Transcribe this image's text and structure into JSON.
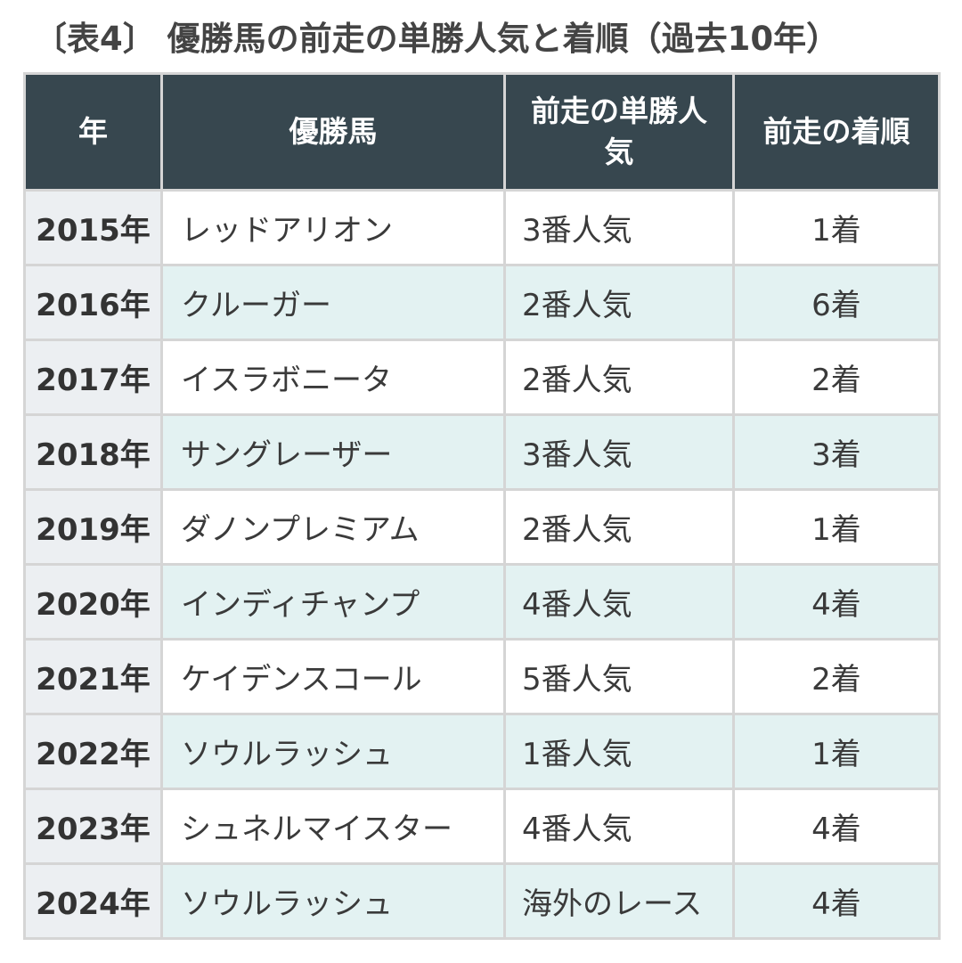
{
  "title": "〔表4〕 優勝馬の前走の単勝人気と着順（過去10年）",
  "table": {
    "headers": {
      "year": "年",
      "horse": "優勝馬",
      "popularity": "前走の単勝人気",
      "finish": "前走の着順"
    },
    "rows": [
      {
        "year": "2015年",
        "horse": "レッドアリオン",
        "popularity": "3番人気",
        "finish": "1着"
      },
      {
        "year": "2016年",
        "horse": "クルーガー",
        "popularity": "2番人気",
        "finish": "6着"
      },
      {
        "year": "2017年",
        "horse": "イスラボニータ",
        "popularity": "2番人気",
        "finish": "2着"
      },
      {
        "year": "2018年",
        "horse": "サングレーザー",
        "popularity": "3番人気",
        "finish": "3着"
      },
      {
        "year": "2019年",
        "horse": "ダノンプレミアム",
        "popularity": "2番人気",
        "finish": "1着"
      },
      {
        "year": "2020年",
        "horse": "インディチャンプ",
        "popularity": "4番人気",
        "finish": "4着"
      },
      {
        "year": "2021年",
        "horse": "ケイデンスコール",
        "popularity": "5番人気",
        "finish": "2着"
      },
      {
        "year": "2022年",
        "horse": "ソウルラッシュ",
        "popularity": "1番人気",
        "finish": "1着"
      },
      {
        "year": "2023年",
        "horse": "シュネルマイスター",
        "popularity": "4番人気",
        "finish": "4着"
      },
      {
        "year": "2024年",
        "horse": "ソウルラッシュ",
        "popularity": "海外のレース",
        "finish": "4着"
      }
    ]
  },
  "colors": {
    "header_bg": "#37474f",
    "header_text": "#ffffff",
    "year_cell_bg": "#eceff2",
    "stripe_bg": "#e3f2f2",
    "border": "#d5d5d5"
  }
}
